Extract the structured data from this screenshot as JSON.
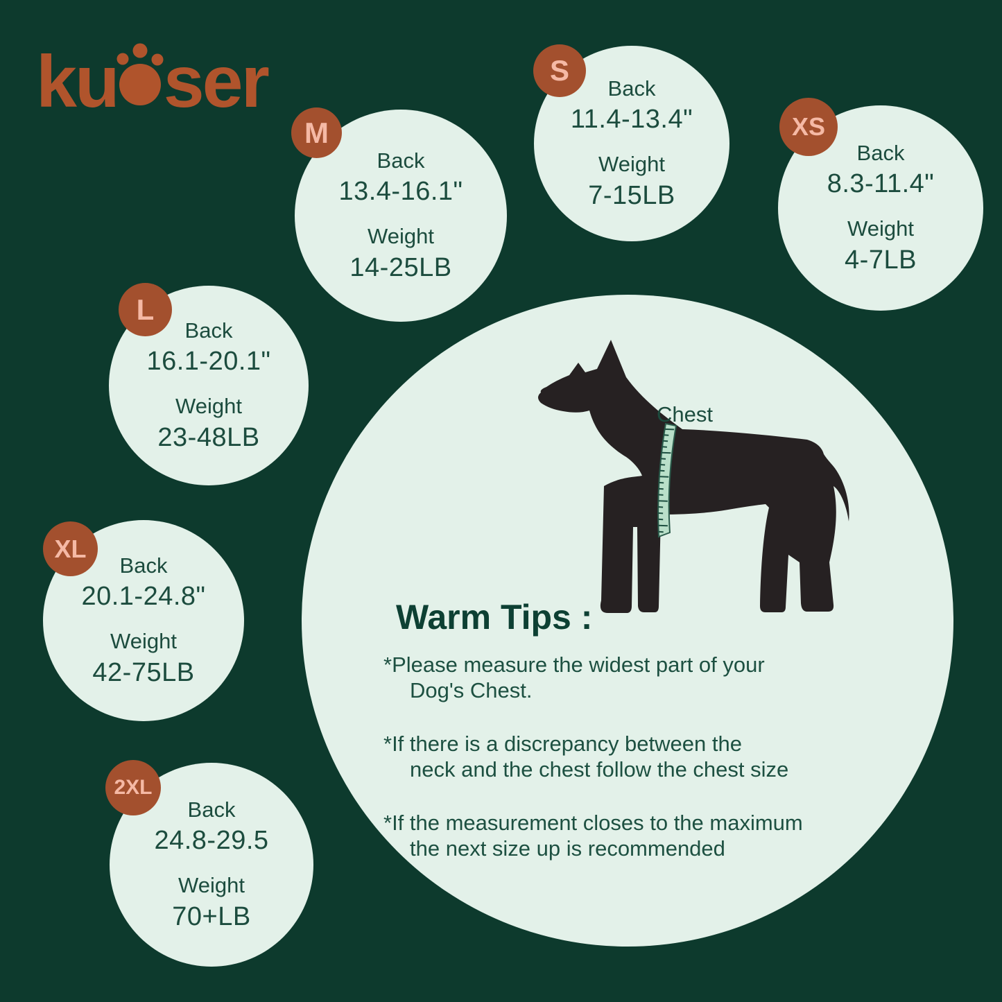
{
  "brand": {
    "name": "kuoser",
    "logo_left": "ku",
    "logo_right": "ser"
  },
  "sizes": [
    {
      "badge": "M",
      "back_label": "Back",
      "back_value": "13.4-16.1\"",
      "weight_label": "Weight",
      "weight_value": "14-25LB"
    },
    {
      "badge": "S",
      "back_label": "Back",
      "back_value": "11.4-13.4\"",
      "weight_label": "Weight",
      "weight_value": "7-15LB"
    },
    {
      "badge": "XS",
      "back_label": "Back",
      "back_value": "8.3-11.4\"",
      "weight_label": "Weight",
      "weight_value": "4-7LB"
    },
    {
      "badge": "L",
      "back_label": "Back",
      "back_value": "16.1-20.1\"",
      "weight_label": "Weight",
      "weight_value": "23-48LB"
    },
    {
      "badge": "XL",
      "back_label": "Back",
      "back_value": "20.1-24.8\"",
      "weight_label": "Weight",
      "weight_value": "42-75LB"
    },
    {
      "badge": "2XL",
      "back_label": "Back",
      "back_value": "24.8-29.5",
      "weight_label": "Weight",
      "weight_value": "70+LB"
    }
  ],
  "diagram": {
    "chest_label": "Chest"
  },
  "tips": {
    "title": "Warm Tips :",
    "items": [
      {
        "lines": [
          "*Please measure the widest part of your",
          "Dog's Chest."
        ]
      },
      {
        "lines": [
          "*If there is a discrepancy between the",
          "neck and the chest follow the chest size"
        ]
      },
      {
        "lines": [
          "*If the measurement closes to the maximum",
          "the next size up is recommended"
        ]
      }
    ]
  },
  "colors": {
    "background": "#0d3a2d",
    "circle_fill": "#e3f1e9",
    "badge_fill": "#a3502e",
    "badge_text": "#f5b9a5",
    "logo": "#b0542c",
    "text_dark_green": "#1c4c3e",
    "tips_title": "#0d4033",
    "dog_silhouette": "#262122",
    "measuring_tape": "#b9dfc9"
  }
}
